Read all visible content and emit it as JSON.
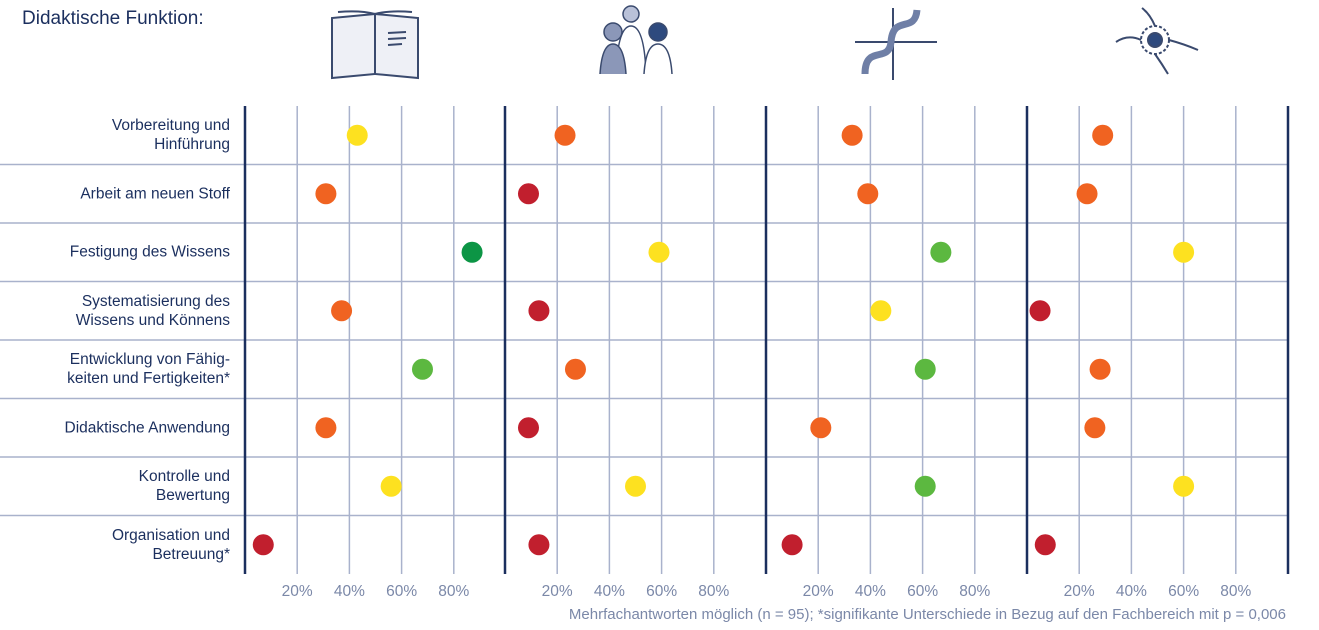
{
  "header": {
    "title": "Didaktische Funktion:"
  },
  "footnote": "Mehrfachantworten möglich (n = 95); *signifikante Unterschiede in Bezug auf den Fachbereich mit p = 0,006",
  "icons": [
    "open-book-icon",
    "people-group-icon",
    "sine-curve-icon",
    "sun-gear-icon"
  ],
  "colors": {
    "dark_red": "#c11f2e",
    "orange": "#f06321",
    "yellow": "#fde120",
    "light_green": "#5cb840",
    "dark_green": "#0c9545",
    "grid": "#a9b2cc",
    "panel_border": "#1b2f5e"
  },
  "chart_data": {
    "type": "scatter",
    "title": "",
    "panels": 4,
    "x_tick_labels": [
      "20%",
      "40%",
      "60%",
      "80%"
    ],
    "xlim": [
      0,
      100
    ],
    "grid": true,
    "categories": [
      "Vorbereitung und\nHinführung",
      "Arbeit am neuen Stoff",
      "Festigung des Wissens",
      "Systematisierung des\nWissens und Könnens",
      "Entwicklung von Fähig-\nkeiten und Fertigkeiten*",
      "Didaktische Anwendung",
      "Kontrolle und\nBewertung",
      "Organisation und\nBetreuung*"
    ],
    "series": [
      {
        "icon": "open-book-icon",
        "values": [
          43,
          31,
          87,
          37,
          68,
          31,
          56,
          7
        ],
        "colors": [
          "yellow",
          "orange",
          "dark_green",
          "orange",
          "light_green",
          "orange",
          "yellow",
          "dark_red"
        ]
      },
      {
        "icon": "people-group-icon",
        "values": [
          23,
          9,
          59,
          13,
          27,
          9,
          50,
          13
        ],
        "colors": [
          "orange",
          "dark_red",
          "yellow",
          "dark_red",
          "orange",
          "dark_red",
          "yellow",
          "dark_red"
        ]
      },
      {
        "icon": "sine-curve-icon",
        "values": [
          33,
          39,
          67,
          44,
          61,
          21,
          61,
          10
        ],
        "colors": [
          "orange",
          "orange",
          "light_green",
          "yellow",
          "light_green",
          "orange",
          "light_green",
          "dark_red"
        ]
      },
      {
        "icon": "sun-gear-icon",
        "values": [
          29,
          23,
          60,
          5,
          28,
          26,
          60,
          7
        ],
        "colors": [
          "orange",
          "orange",
          "yellow",
          "dark_red",
          "orange",
          "orange",
          "yellow",
          "dark_red"
        ]
      }
    ]
  }
}
